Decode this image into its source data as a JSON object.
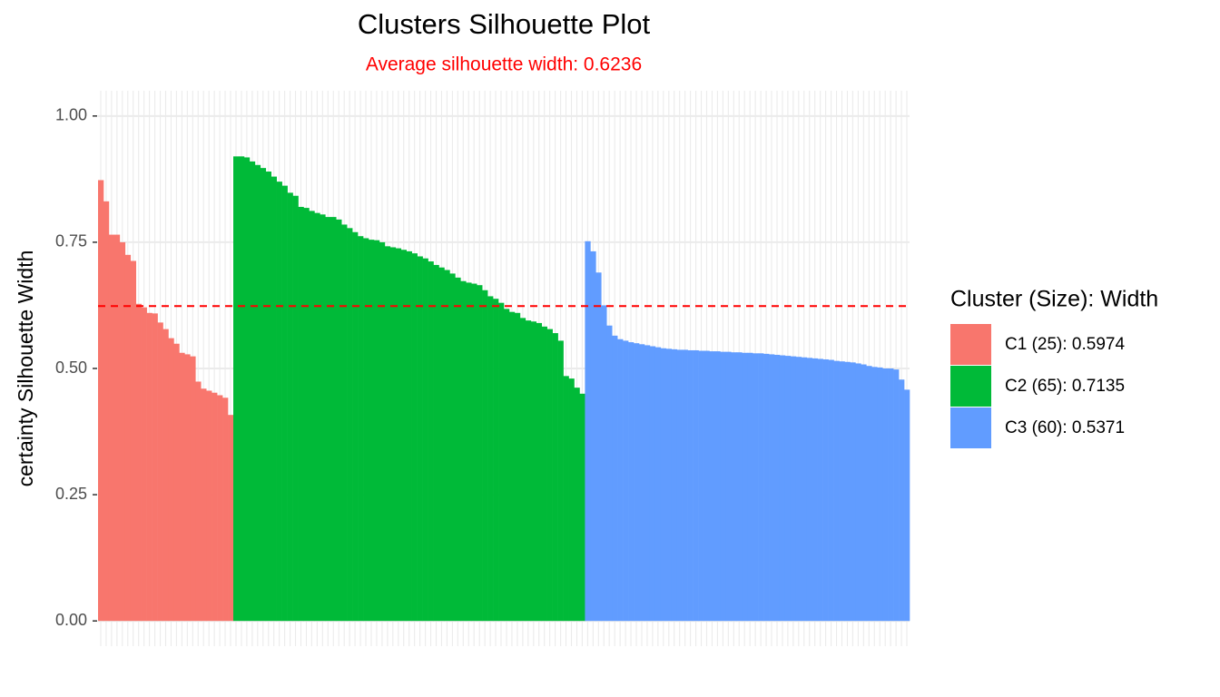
{
  "chart_data": {
    "type": "bar",
    "title": "Clusters Silhouette Plot",
    "subtitle": "Average silhouette width: 0.6236",
    "y_label": "certainty Silhouette Width",
    "legend_title": "Cluster (Size): Width",
    "hline": 0.6236,
    "hline_color": "#ff0000",
    "ylim": [
      -0.05,
      1.05
    ],
    "yticks": [
      {
        "value": 0,
        "label": "0.00"
      },
      {
        "value": 0.25,
        "label": "0.25"
      },
      {
        "value": 0.5,
        "label": "0.50"
      },
      {
        "value": 0.75,
        "label": "0.75"
      },
      {
        "value": 1,
        "label": "1.00"
      }
    ],
    "grid": true,
    "series": [
      {
        "name": "C1 (25): 0.5974",
        "color": "#f8766d",
        "values": [
          0.873,
          0.831,
          0.765,
          0.765,
          0.75,
          0.725,
          0.713,
          0.628,
          0.621,
          0.61,
          0.609,
          0.591,
          0.578,
          0.56,
          0.549,
          0.531,
          0.528,
          0.524,
          0.474,
          0.46,
          0.456,
          0.452,
          0.447,
          0.442,
          0.408
        ]
      },
      {
        "name": "C2 (65): 0.7135",
        "color": "#00ba38",
        "values": [
          0.92,
          0.92,
          0.918,
          0.91,
          0.903,
          0.897,
          0.89,
          0.88,
          0.87,
          0.862,
          0.848,
          0.842,
          0.82,
          0.818,
          0.812,
          0.808,
          0.805,
          0.8,
          0.8,
          0.795,
          0.785,
          0.778,
          0.77,
          0.762,
          0.758,
          0.755,
          0.754,
          0.75,
          0.742,
          0.74,
          0.738,
          0.735,
          0.732,
          0.728,
          0.722,
          0.718,
          0.712,
          0.705,
          0.7,
          0.695,
          0.688,
          0.68,
          0.673,
          0.67,
          0.668,
          0.665,
          0.655,
          0.643,
          0.638,
          0.63,
          0.618,
          0.612,
          0.61,
          0.6,
          0.595,
          0.593,
          0.59,
          0.583,
          0.578,
          0.57,
          0.555,
          0.485,
          0.48,
          0.462,
          0.45
        ]
      },
      {
        "name": "C3 (60): 0.5371",
        "color": "#619cff",
        "values": [
          0.752,
          0.732,
          0.69,
          0.625,
          0.585,
          0.565,
          0.558,
          0.555,
          0.552,
          0.55,
          0.548,
          0.546,
          0.544,
          0.542,
          0.54,
          0.539,
          0.538,
          0.537,
          0.537,
          0.536,
          0.536,
          0.535,
          0.535,
          0.534,
          0.534,
          0.533,
          0.533,
          0.532,
          0.532,
          0.531,
          0.531,
          0.53,
          0.53,
          0.529,
          0.528,
          0.527,
          0.526,
          0.525,
          0.524,
          0.523,
          0.522,
          0.521,
          0.52,
          0.519,
          0.518,
          0.517,
          0.515,
          0.514,
          0.513,
          0.512,
          0.51,
          0.508,
          0.505,
          0.503,
          0.502,
          0.5,
          0.5,
          0.498,
          0.478,
          0.458
        ]
      }
    ]
  }
}
